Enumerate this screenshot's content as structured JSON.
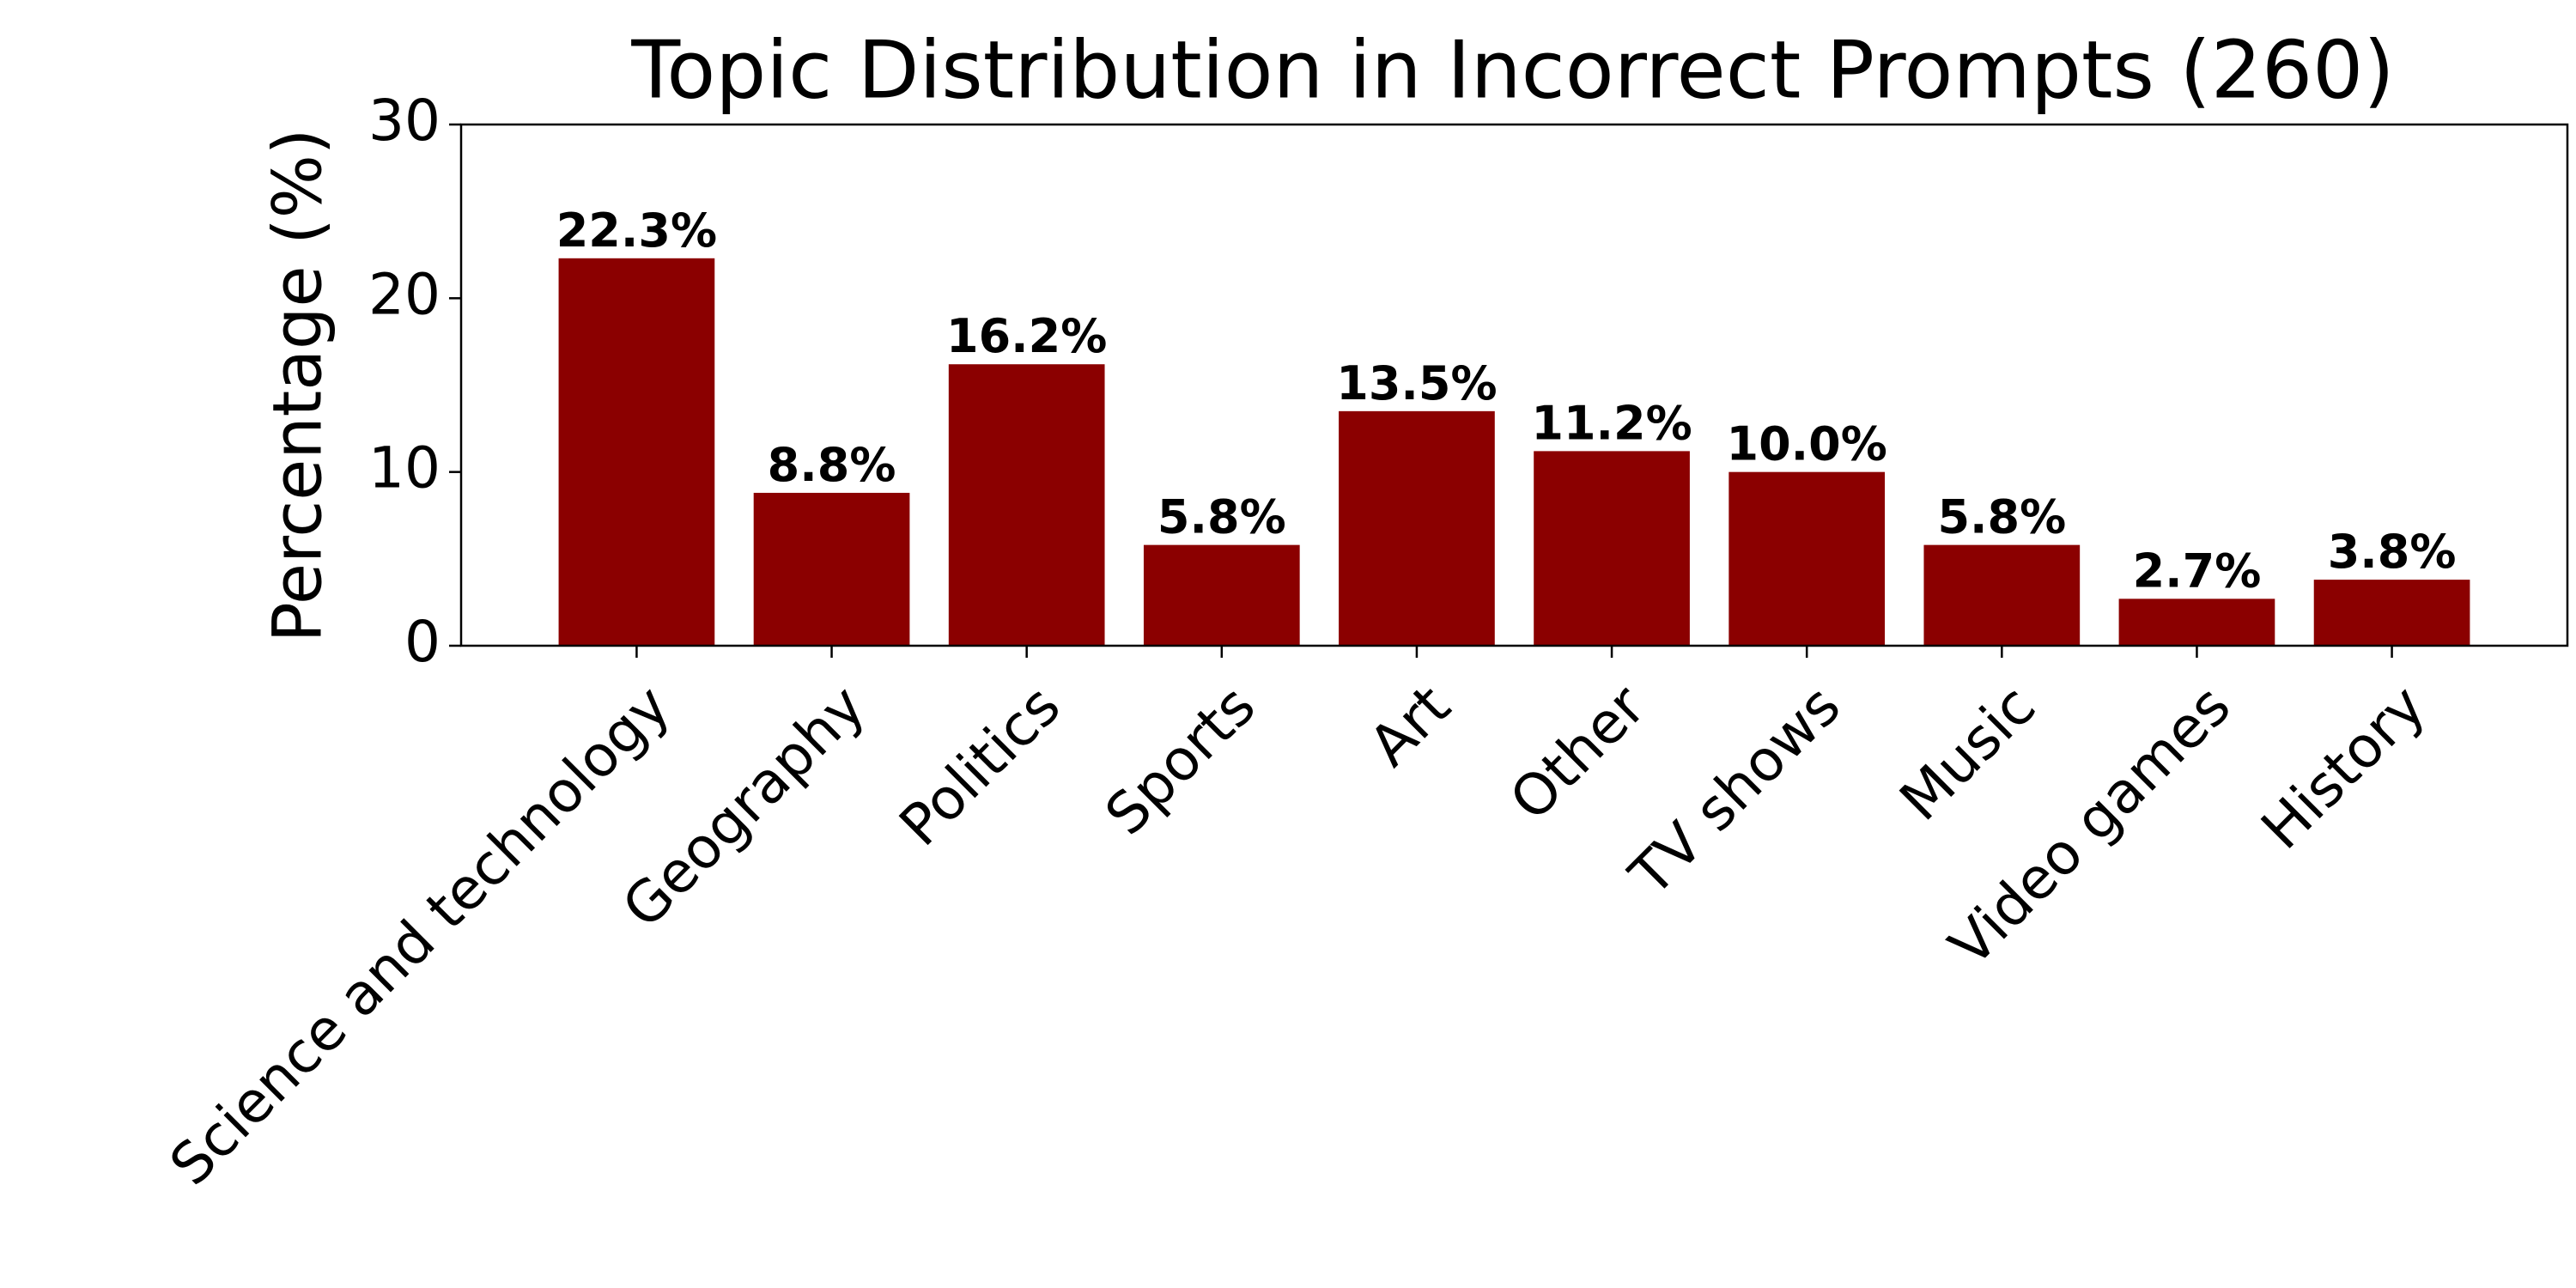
{
  "chart_data": {
    "type": "bar",
    "title": "Topic Distribution in Incorrect Prompts (260)",
    "y_label": "Percentage (%)",
    "categories": [
      "Science and technology",
      "Geography",
      "Politics",
      "Sports",
      "Art",
      "Other",
      "TV shows",
      "Music",
      "Video games",
      "History"
    ],
    "values": [
      22.3,
      8.8,
      16.2,
      5.8,
      13.5,
      11.2,
      10.0,
      5.8,
      2.7,
      3.8
    ],
    "value_labels": [
      "22.3%",
      "8.8%",
      "16.2%",
      "5.8%",
      "13.5%",
      "11.2%",
      "10.0%",
      "5.8%",
      "2.7%",
      "3.8%"
    ],
    "color": "#8b0000",
    "ylim": [
      0,
      30
    ],
    "yticks": [
      0,
      10,
      20,
      30
    ],
    "grid": false
  }
}
